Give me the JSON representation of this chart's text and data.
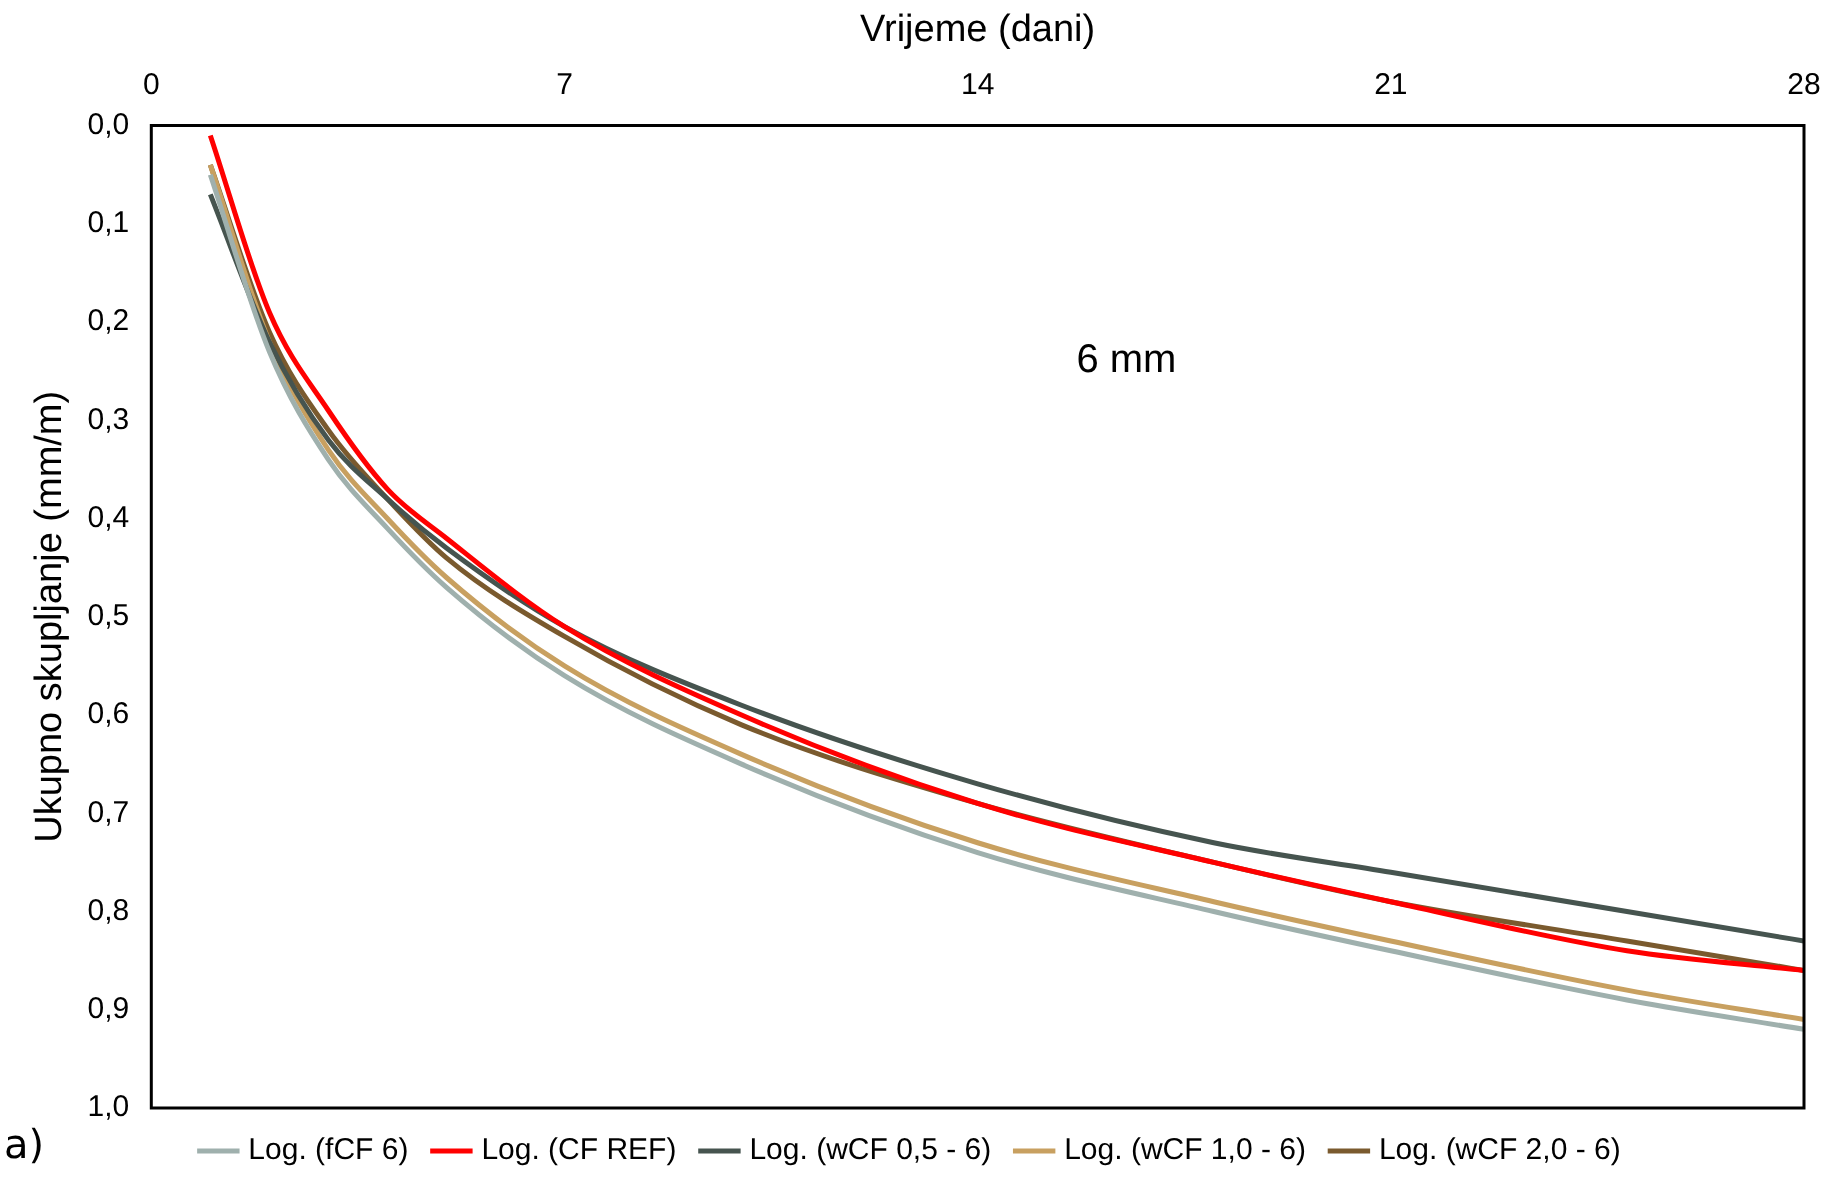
{
  "chart_data": {
    "type": "line",
    "xlabel": "Vrijeme (dani)",
    "ylabel": "Ukupno skupljanje (mm/m)",
    "x": [
      1,
      2,
      3,
      4,
      5,
      7,
      10,
      14,
      18,
      21,
      25,
      28
    ],
    "xlim": [
      0,
      28
    ],
    "xticks": [
      0,
      7,
      14,
      21,
      28
    ],
    "ylim": [
      1,
      0
    ],
    "yticks": [
      {
        "value": 0,
        "label": "0,0"
      },
      {
        "value": 0.1,
        "label": "0,1"
      },
      {
        "value": 0.2,
        "label": "0,2"
      },
      {
        "value": 0.3,
        "label": "0,3"
      },
      {
        "value": 0.4,
        "label": "0,4"
      },
      {
        "value": 0.5,
        "label": "0,5"
      },
      {
        "value": 0.6,
        "label": "0,6"
      },
      {
        "value": 0.7,
        "label": "0,7"
      },
      {
        "value": 0.8,
        "label": "0,8"
      },
      {
        "value": 0.9,
        "label": "0,9"
      },
      {
        "value": 1,
        "label": "1,0"
      }
    ],
    "series": [
      {
        "name": "Log. (fCF 6)",
        "color": "#9fb0ad",
        "values": [
          0.05,
          0.23,
          0.34,
          0.41,
          0.47,
          0.56,
          0.65,
          0.74,
          0.8,
          0.84,
          0.89,
          0.92
        ]
      },
      {
        "name": "Log. (CF REF)",
        "color": "#ff0000",
        "values": [
          0.01,
          0.19,
          0.29,
          0.37,
          0.42,
          0.51,
          0.6,
          0.69,
          0.75,
          0.79,
          0.84,
          0.86
        ]
      },
      {
        "name": "Log. (wCF 0,5 - 6)",
        "color": "#46544f",
        "values": [
          0.07,
          0.22,
          0.32,
          0.38,
          0.43,
          0.51,
          0.59,
          0.67,
          0.73,
          0.76,
          0.8,
          0.83
        ]
      },
      {
        "name": "Log. (wCF 1,0 - 6)",
        "color": "#c8a060",
        "values": [
          0.04,
          0.22,
          0.33,
          0.4,
          0.46,
          0.55,
          0.64,
          0.73,
          0.79,
          0.83,
          0.88,
          0.91
        ]
      },
      {
        "name": "Log. (wCF 2,0 - 6)",
        "color": "#7a5a2e",
        "values": [
          0.04,
          0.21,
          0.31,
          0.38,
          0.44,
          0.52,
          0.61,
          0.69,
          0.75,
          0.79,
          0.83,
          0.86
        ]
      }
    ],
    "annotations": [
      "6 mm",
      "a)"
    ],
    "grid": false,
    "legend": "bottom",
    "marker": "none",
    "line_style": "solid"
  }
}
